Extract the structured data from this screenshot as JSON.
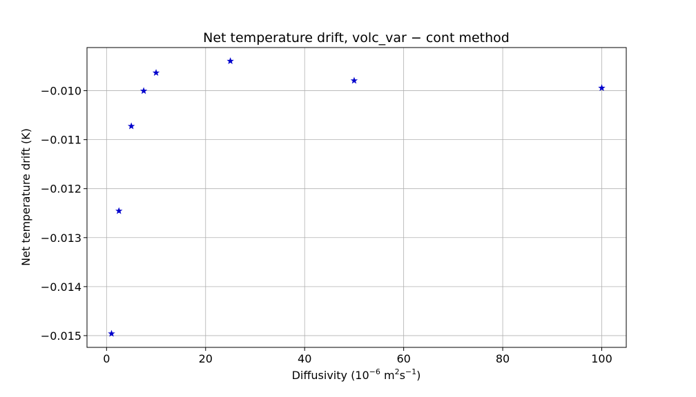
{
  "chart_data": {
    "type": "scatter",
    "title": "Net temperature drift, volc_var − cont method",
    "xlabel": {
      "prefix": "Diffusivity (10",
      "exp1": "−6",
      "mid": " m",
      "exp2": "2",
      "mid2": "s",
      "exp3": "−1",
      "suffix": ")"
    },
    "ylabel": "Net temperature drift (K)",
    "xlim": [
      -3.95,
      104.95
    ],
    "ylim": [
      -0.01524,
      -0.00912
    ],
    "xticks": [
      0,
      20,
      40,
      60,
      80,
      100
    ],
    "xtick_labels": [
      "0",
      "20",
      "40",
      "60",
      "80",
      "100"
    ],
    "yticks": [
      -0.015,
      -0.014,
      -0.013,
      -0.012,
      -0.011,
      -0.01
    ],
    "ytick_labels": [
      "−0.015",
      "−0.014",
      "−0.013",
      "−0.012",
      "−0.011",
      "−0.010"
    ],
    "grid": true,
    "marker": "star",
    "color": "#0000cc",
    "series": [
      {
        "x": [
          1,
          2.5,
          5,
          7.5,
          10,
          25,
          50,
          100
        ],
        "y": [
          -0.01496,
          -0.012455,
          -0.010725,
          -0.010005,
          -0.009635,
          -0.009395,
          -0.009795,
          -0.009945
        ]
      }
    ]
  }
}
